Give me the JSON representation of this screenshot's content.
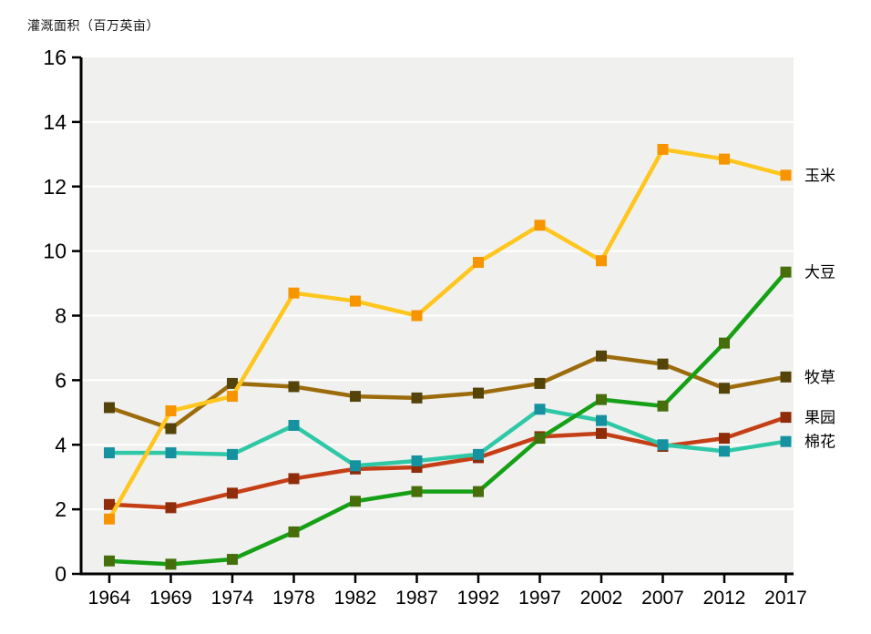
{
  "chart_data": {
    "type": "line",
    "title": "灌溉面积（百万英亩）",
    "xlabel": "",
    "ylabel": "灌溉面积（百万英亩）",
    "x": [
      1964,
      1969,
      1974,
      1978,
      1982,
      1987,
      1992,
      1997,
      2002,
      2007,
      2012,
      2017
    ],
    "ylim": [
      0,
      16
    ],
    "yticks": [
      0,
      2,
      4,
      6,
      8,
      10,
      12,
      14,
      16
    ],
    "grid": "horizontal-white-lines-on-gray-panel",
    "panel_color": "#F0F0EF",
    "gridline_color": "#FFFFFF",
    "legend_position": "right-end-of-lines",
    "series": [
      {
        "id": "orchard",
        "name": "果园",
        "line_color": "#C53F16",
        "marker_color": "#8F2D0A",
        "values": [
          2.15,
          2.05,
          2.5,
          2.95,
          3.25,
          3.3,
          3.6,
          4.25,
          4.35,
          3.95,
          4.2,
          4.85
        ]
      },
      {
        "id": "cotton",
        "name": "棉花",
        "line_color": "#2FC8A7",
        "marker_color": "#1691A0",
        "values": [
          3.75,
          3.75,
          3.7,
          4.6,
          3.35,
          3.5,
          3.7,
          5.1,
          4.75,
          4.0,
          3.8,
          4.1
        ]
      },
      {
        "id": "hay",
        "name": "牧草",
        "line_color": "#9C6C0C",
        "marker_color": "#554409",
        "values": [
          5.15,
          4.5,
          5.9,
          5.8,
          5.5,
          5.45,
          5.6,
          5.9,
          6.75,
          6.5,
          5.75,
          6.1
        ]
      },
      {
        "id": "corn",
        "name": "玉米",
        "line_color": "#FFC61E",
        "marker_color": "#F79500",
        "values": [
          1.7,
          5.05,
          5.5,
          8.7,
          8.45,
          8.0,
          9.65,
          10.8,
          9.7,
          13.15,
          12.85,
          12.35
        ]
      },
      {
        "id": "soybean",
        "name": "大豆",
        "line_color": "#15A015",
        "marker_color": "#466F0B",
        "values": [
          0.4,
          0.3,
          0.45,
          1.3,
          2.25,
          2.55,
          2.55,
          4.2,
          5.4,
          5.2,
          7.15,
          9.35
        ]
      }
    ]
  }
}
